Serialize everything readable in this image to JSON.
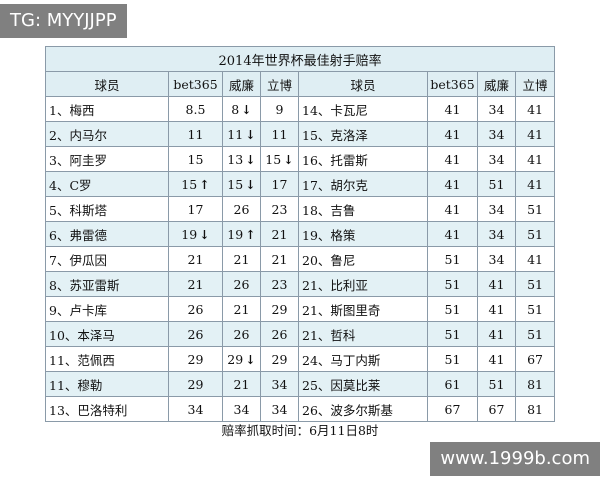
{
  "watermarks": {
    "top_left": "TG: MYYJJPP",
    "bottom_right": "www.1999b.com"
  },
  "table": {
    "title": "2014年世界杯最佳射手赔率",
    "headers": [
      "球员",
      "bet365",
      "威廉",
      "立博",
      "球员",
      "bet365",
      "威廉",
      "立博"
    ],
    "rows": [
      [
        {
          "text": "1、梅西"
        },
        {
          "text": "8.5"
        },
        {
          "text": "8",
          "arrow": "down"
        },
        {
          "text": "9"
        },
        {
          "text": "14、卡瓦尼"
        },
        {
          "text": "41"
        },
        {
          "text": "34"
        },
        {
          "text": "41"
        }
      ],
      [
        {
          "text": "2、内马尔"
        },
        {
          "text": "11"
        },
        {
          "text": "11",
          "arrow": "down"
        },
        {
          "text": "11"
        },
        {
          "text": "15、克洛泽"
        },
        {
          "text": "41"
        },
        {
          "text": "34"
        },
        {
          "text": "41"
        }
      ],
      [
        {
          "text": "3、阿圭罗"
        },
        {
          "text": "15"
        },
        {
          "text": "13",
          "arrow": "down"
        },
        {
          "text": "15",
          "arrow": "down",
          "bold": true
        },
        {
          "text": "16、托雷斯"
        },
        {
          "text": "41"
        },
        {
          "text": "34"
        },
        {
          "text": "41"
        }
      ],
      [
        {
          "text": "4、C罗"
        },
        {
          "text": "15",
          "arrow": "up",
          "bold": true
        },
        {
          "text": "15",
          "arrow": "down"
        },
        {
          "text": "17"
        },
        {
          "text": "17、胡尔克"
        },
        {
          "text": "41"
        },
        {
          "text": "51"
        },
        {
          "text": "41"
        }
      ],
      [
        {
          "text": "5、科斯塔"
        },
        {
          "text": "17"
        },
        {
          "text": "26"
        },
        {
          "text": "23"
        },
        {
          "text": "18、吉鲁"
        },
        {
          "text": "41"
        },
        {
          "text": "34"
        },
        {
          "text": "51"
        }
      ],
      [
        {
          "text": "6、弗雷德"
        },
        {
          "text": "19",
          "arrow": "down"
        },
        {
          "text": "19",
          "arrow": "up"
        },
        {
          "text": "21"
        },
        {
          "text": "19、格策"
        },
        {
          "text": "41"
        },
        {
          "text": "34"
        },
        {
          "text": "51"
        }
      ],
      [
        {
          "text": "7、伊瓜因"
        },
        {
          "text": "21"
        },
        {
          "text": "21"
        },
        {
          "text": "21"
        },
        {
          "text": "20、鲁尼"
        },
        {
          "text": "51"
        },
        {
          "text": "34"
        },
        {
          "text": "41"
        }
      ],
      [
        {
          "text": "8、苏亚雷斯"
        },
        {
          "text": "21"
        },
        {
          "text": "26"
        },
        {
          "text": "23"
        },
        {
          "text": "21、比利亚"
        },
        {
          "text": "51"
        },
        {
          "text": "41"
        },
        {
          "text": "51"
        }
      ],
      [
        {
          "text": "9、卢卡库"
        },
        {
          "text": "26"
        },
        {
          "text": "21"
        },
        {
          "text": "29"
        },
        {
          "text": "21、斯图里奇"
        },
        {
          "text": "51"
        },
        {
          "text": "41"
        },
        {
          "text": "51"
        }
      ],
      [
        {
          "text": "10、本泽马"
        },
        {
          "text": "26"
        },
        {
          "text": "26"
        },
        {
          "text": "26"
        },
        {
          "text": "21、哲科"
        },
        {
          "text": "51"
        },
        {
          "text": "41"
        },
        {
          "text": "51"
        }
      ],
      [
        {
          "text": "11、范佩西"
        },
        {
          "text": "29"
        },
        {
          "text": "29",
          "arrow": "down"
        },
        {
          "text": "29"
        },
        {
          "text": "24、马丁内斯"
        },
        {
          "text": "51"
        },
        {
          "text": "41"
        },
        {
          "text": "67"
        }
      ],
      [
        {
          "text": "11、穆勒"
        },
        {
          "text": "29"
        },
        {
          "text": "21"
        },
        {
          "text": "34"
        },
        {
          "text": "25、因莫比莱"
        },
        {
          "text": "61"
        },
        {
          "text": "51"
        },
        {
          "text": "81"
        }
      ],
      [
        {
          "text": "13、巴洛特利"
        },
        {
          "text": "34"
        },
        {
          "text": "34"
        },
        {
          "text": "34"
        },
        {
          "text": "26、波多尔斯基"
        },
        {
          "text": "67"
        },
        {
          "text": "67"
        },
        {
          "text": "81"
        }
      ]
    ]
  },
  "footnote": "赔率抓取时间：6月11日8时",
  "icons": {
    "up": "↑",
    "down": "↓"
  }
}
